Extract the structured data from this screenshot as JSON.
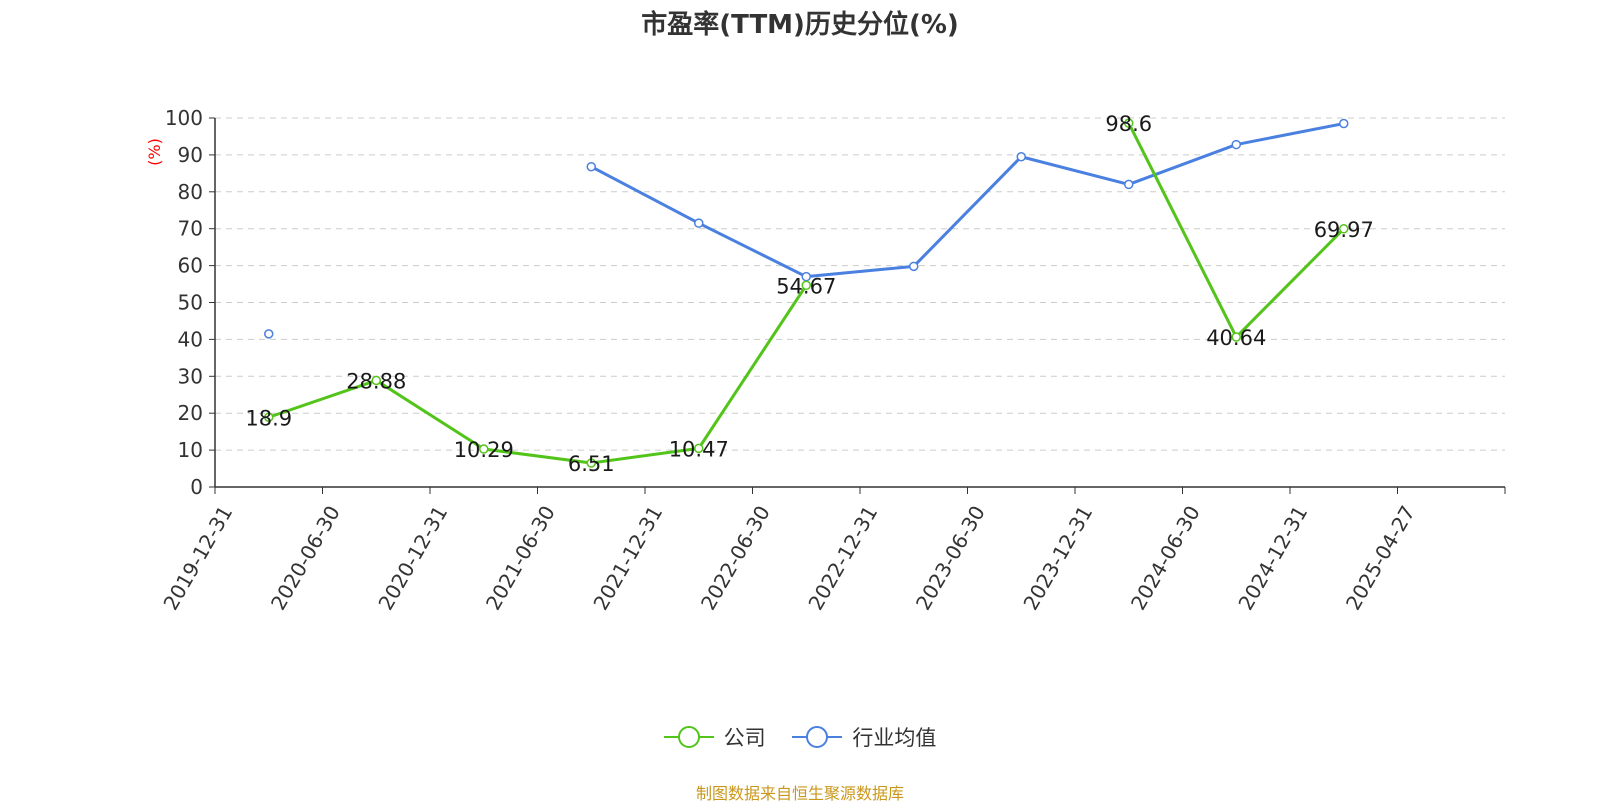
{
  "title": "市盈率(TTM)历史分位(%)",
  "source": "制图数据来自恒生聚源数据库",
  "colors": {
    "company": "#52c41a",
    "industry": "#4a80df",
    "source": "#c9971c",
    "ylabel": "#ff0000"
  },
  "chart_data": {
    "type": "line",
    "title": "市盈率(TTM)历史分位(%)",
    "ylabel": "(%)",
    "xlabel": "",
    "ylim": [
      0,
      100
    ],
    "yticks": [
      0,
      10,
      20,
      30,
      40,
      50,
      60,
      70,
      80,
      90,
      100
    ],
    "grid": true,
    "legend_position": "bottom",
    "categories": [
      "2019-12-31",
      "2020-06-30",
      "2020-12-31",
      "2021-06-30",
      "2021-12-31",
      "2022-06-30",
      "2022-12-31",
      "2023-06-30",
      "2023-12-31",
      "2024-06-30",
      "2024-12-31",
      "2025-04-27"
    ],
    "series": [
      {
        "name": "公司",
        "values": [
          18.9,
          28.88,
          10.29,
          6.51,
          10.47,
          54.67,
          null,
          null,
          98.6,
          40.64,
          69.97,
          null
        ],
        "labels": true
      },
      {
        "name": "行业均值",
        "values": [
          41.5,
          null,
          null,
          86.8,
          71.5,
          57.0,
          59.8,
          89.5,
          82.0,
          92.8,
          98.5,
          null
        ],
        "labels": false
      }
    ]
  }
}
